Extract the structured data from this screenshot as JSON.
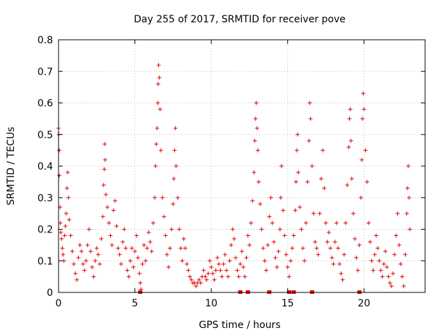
{
  "chart_data": {
    "type": "scatter",
    "title": "Day 255 of 2017, SRMTID for receiver pove",
    "xlabel": "GPS time / hours",
    "ylabel": "SRMTID / TECUs",
    "xlim": [
      0,
      24
    ],
    "ylim": [
      0,
      0.8
    ],
    "xticks": [
      0,
      5,
      10,
      15,
      20
    ],
    "yticks": [
      0,
      0.1,
      0.2,
      0.3,
      0.4,
      0.5,
      0.6,
      0.7,
      0.8
    ],
    "xtick_labels": [
      "0",
      "5",
      "10",
      "15",
      "20"
    ],
    "ytick_labels": [
      "0",
      "0.1",
      "0.2",
      "0.3",
      "0.4",
      "0.5",
      "0.6",
      "0.7",
      "0.8"
    ],
    "grid": true,
    "marker": "+",
    "color": "#e00000",
    "series": [
      {
        "name": "pove",
        "points": [
          [
            0.0,
            0.52
          ],
          [
            0.02,
            0.5
          ],
          [
            0.05,
            0.45
          ],
          [
            0.05,
            0.37
          ],
          [
            0.1,
            0.27
          ],
          [
            0.12,
            0.22
          ],
          [
            0.15,
            0.19
          ],
          [
            0.2,
            0.17
          ],
          [
            0.25,
            0.14
          ],
          [
            0.3,
            0.12
          ],
          [
            0.35,
            0.1
          ],
          [
            0.4,
            0.18
          ],
          [
            0.45,
            0.21
          ],
          [
            0.5,
            0.25
          ],
          [
            0.55,
            0.33
          ],
          [
            0.6,
            0.38
          ],
          [
            0.65,
            0.3
          ],
          [
            0.7,
            0.23
          ],
          [
            0.8,
            0.18
          ],
          [
            0.9,
            0.13
          ],
          [
            1.0,
            0.09
          ],
          [
            1.1,
            0.06
          ],
          [
            1.2,
            0.04
          ],
          [
            1.3,
            0.11
          ],
          [
            1.4,
            0.15
          ],
          [
            1.5,
            0.13
          ],
          [
            1.6,
            0.09
          ],
          [
            1.7,
            0.07
          ],
          [
            1.8,
            0.1
          ],
          [
            1.9,
            0.15
          ],
          [
            2.0,
            0.2
          ],
          [
            2.1,
            0.13
          ],
          [
            2.2,
            0.08
          ],
          [
            2.3,
            0.05
          ],
          [
            2.4,
            0.1
          ],
          [
            2.5,
            0.14
          ],
          [
            2.6,
            0.12
          ],
          [
            2.7,
            0.09
          ],
          [
            2.8,
            0.17
          ],
          [
            2.9,
            0.24
          ],
          [
            2.95,
            0.34
          ],
          [
            3.0,
            0.39
          ],
          [
            3.02,
            0.47
          ],
          [
            3.05,
            0.42
          ],
          [
            3.1,
            0.31
          ],
          [
            3.2,
            0.27
          ],
          [
            3.3,
            0.22
          ],
          [
            3.4,
            0.18
          ],
          [
            3.5,
            0.15
          ],
          [
            3.6,
            0.26
          ],
          [
            3.7,
            0.29
          ],
          [
            3.8,
            0.21
          ],
          [
            3.9,
            0.14
          ],
          [
            4.0,
            0.12
          ],
          [
            4.1,
            0.09
          ],
          [
            4.2,
            0.16
          ],
          [
            4.3,
            0.2
          ],
          [
            4.4,
            0.14
          ],
          [
            4.5,
            0.07
          ],
          [
            4.6,
            0.05
          ],
          [
            4.7,
            0.1
          ],
          [
            4.8,
            0.14
          ],
          [
            4.9,
            0.08
          ],
          [
            5.0,
            0.13
          ],
          [
            5.1,
            0.18
          ],
          [
            5.2,
            0.11
          ],
          [
            5.3,
            0.06
          ],
          [
            5.35,
            0.03
          ],
          [
            5.4,
            0.01
          ],
          [
            5.5,
            0.09
          ],
          [
            5.6,
            0.15
          ],
          [
            5.7,
            0.1
          ],
          [
            5.8,
            0.14
          ],
          [
            5.9,
            0.19
          ],
          [
            6.0,
            0.16
          ],
          [
            6.1,
            0.13
          ],
          [
            6.2,
            0.22
          ],
          [
            6.3,
            0.3
          ],
          [
            6.35,
            0.4
          ],
          [
            6.4,
            0.47
          ],
          [
            6.45,
            0.52
          ],
          [
            6.5,
            0.6
          ],
          [
            6.52,
            0.66
          ],
          [
            6.55,
            0.72
          ],
          [
            6.6,
            0.68
          ],
          [
            6.65,
            0.58
          ],
          [
            6.7,
            0.45
          ],
          [
            6.8,
            0.3
          ],
          [
            6.9,
            0.24
          ],
          [
            7.0,
            0.18
          ],
          [
            7.1,
            0.12
          ],
          [
            7.2,
            0.08
          ],
          [
            7.3,
            0.14
          ],
          [
            7.4,
            0.2
          ],
          [
            7.5,
            0.28
          ],
          [
            7.55,
            0.36
          ],
          [
            7.6,
            0.45
          ],
          [
            7.65,
            0.52
          ],
          [
            7.7,
            0.4
          ],
          [
            7.8,
            0.3
          ],
          [
            7.9,
            0.2
          ],
          [
            8.0,
            0.14
          ],
          [
            8.1,
            0.1
          ],
          [
            8.2,
            0.17
          ],
          [
            8.3,
            0.14
          ],
          [
            8.4,
            0.09
          ],
          [
            8.5,
            0.07
          ],
          [
            8.6,
            0.05
          ],
          [
            8.7,
            0.04
          ],
          [
            8.8,
            0.03
          ],
          [
            8.9,
            0.03
          ],
          [
            9.0,
            0.02
          ],
          [
            9.1,
            0.03
          ],
          [
            9.2,
            0.04
          ],
          [
            9.3,
            0.03
          ],
          [
            9.4,
            0.05
          ],
          [
            9.5,
            0.07
          ],
          [
            9.6,
            0.05
          ],
          [
            9.7,
            0.04
          ],
          [
            9.8,
            0.06
          ],
          [
            9.9,
            0.1
          ],
          [
            10.0,
            0.08
          ],
          [
            10.1,
            0.06
          ],
          [
            10.2,
            0.04
          ],
          [
            10.3,
            0.07
          ],
          [
            10.4,
            0.11
          ],
          [
            10.5,
            0.09
          ],
          [
            10.6,
            0.07
          ],
          [
            10.7,
            0.05
          ],
          [
            10.8,
            0.09
          ],
          [
            10.9,
            0.12
          ],
          [
            11.0,
            0.07
          ],
          [
            11.1,
            0.05
          ],
          [
            11.2,
            0.1
          ],
          [
            11.3,
            0.15
          ],
          [
            11.4,
            0.2
          ],
          [
            11.5,
            0.17
          ],
          [
            11.6,
            0.11
          ],
          [
            11.7,
            0.07
          ],
          [
            11.8,
            0.05
          ],
          [
            11.9,
            0.09
          ],
          [
            12.0,
            0.13
          ],
          [
            12.1,
            0.08
          ],
          [
            12.2,
            0.05
          ],
          [
            12.3,
            0.11
          ],
          [
            12.4,
            0.18
          ],
          [
            12.5,
            0.15
          ],
          [
            12.6,
            0.22
          ],
          [
            12.7,
            0.29
          ],
          [
            12.8,
            0.38
          ],
          [
            12.85,
            0.48
          ],
          [
            12.9,
            0.55
          ],
          [
            12.95,
            0.6
          ],
          [
            13.0,
            0.52
          ],
          [
            13.05,
            0.45
          ],
          [
            13.1,
            0.35
          ],
          [
            13.2,
            0.28
          ],
          [
            13.3,
            0.2
          ],
          [
            13.4,
            0.14
          ],
          [
            13.5,
            0.1
          ],
          [
            13.6,
            0.07
          ],
          [
            13.7,
            0.15
          ],
          [
            13.8,
            0.24
          ],
          [
            13.9,
            0.3
          ],
          [
            14.0,
            0.22
          ],
          [
            14.1,
            0.16
          ],
          [
            14.2,
            0.11
          ],
          [
            14.3,
            0.08
          ],
          [
            14.4,
            0.13
          ],
          [
            14.5,
            0.2
          ],
          [
            14.55,
            0.3
          ],
          [
            14.6,
            0.4
          ],
          [
            14.7,
            0.26
          ],
          [
            14.8,
            0.18
          ],
          [
            14.9,
            0.12
          ],
          [
            15.0,
            0.08
          ],
          [
            15.1,
            0.05
          ],
          [
            15.2,
            0.1
          ],
          [
            15.3,
            0.14
          ],
          [
            15.4,
            0.18
          ],
          [
            15.5,
            0.26
          ],
          [
            15.55,
            0.35
          ],
          [
            15.6,
            0.45
          ],
          [
            15.65,
            0.5
          ],
          [
            15.7,
            0.38
          ],
          [
            15.8,
            0.27
          ],
          [
            15.9,
            0.2
          ],
          [
            16.0,
            0.14
          ],
          [
            16.1,
            0.1
          ],
          [
            16.2,
            0.22
          ],
          [
            16.3,
            0.35
          ],
          [
            16.4,
            0.48
          ],
          [
            16.45,
            0.6
          ],
          [
            16.5,
            0.55
          ],
          [
            16.6,
            0.4
          ],
          [
            16.7,
            0.25
          ],
          [
            16.8,
            0.16
          ],
          [
            16.9,
            0.14
          ],
          [
            17.0,
            0.12
          ],
          [
            17.1,
            0.25
          ],
          [
            17.2,
            0.36
          ],
          [
            17.3,
            0.45
          ],
          [
            17.4,
            0.33
          ],
          [
            17.5,
            0.22
          ],
          [
            17.6,
            0.16
          ],
          [
            17.7,
            0.19
          ],
          [
            17.8,
            0.14
          ],
          [
            17.9,
            0.11
          ],
          [
            18.0,
            0.09
          ],
          [
            18.1,
            0.16
          ],
          [
            18.2,
            0.22
          ],
          [
            18.3,
            0.14
          ],
          [
            18.4,
            0.09
          ],
          [
            18.5,
            0.06
          ],
          [
            18.6,
            0.04
          ],
          [
            18.7,
            0.12
          ],
          [
            18.8,
            0.22
          ],
          [
            18.9,
            0.34
          ],
          [
            19.0,
            0.46
          ],
          [
            19.05,
            0.55
          ],
          [
            19.1,
            0.58
          ],
          [
            19.15,
            0.48
          ],
          [
            19.2,
            0.36
          ],
          [
            19.3,
            0.25
          ],
          [
            19.4,
            0.17
          ],
          [
            19.5,
            0.11
          ],
          [
            19.6,
            0.07
          ],
          [
            19.7,
            0.15
          ],
          [
            19.8,
            0.3
          ],
          [
            19.85,
            0.42
          ],
          [
            19.9,
            0.55
          ],
          [
            19.95,
            0.63
          ],
          [
            20.0,
            0.58
          ],
          [
            20.1,
            0.45
          ],
          [
            20.2,
            0.35
          ],
          [
            20.3,
            0.22
          ],
          [
            20.4,
            0.16
          ],
          [
            20.5,
            0.1
          ],
          [
            20.6,
            0.07
          ],
          [
            20.7,
            0.12
          ],
          [
            20.8,
            0.18
          ],
          [
            20.9,
            0.14
          ],
          [
            21.0,
            0.1
          ],
          [
            21.1,
            0.07
          ],
          [
            21.2,
            0.05
          ],
          [
            21.3,
            0.09
          ],
          [
            21.4,
            0.13
          ],
          [
            21.5,
            0.08
          ],
          [
            21.6,
            0.05
          ],
          [
            21.7,
            0.03
          ],
          [
            21.8,
            0.02
          ],
          [
            21.9,
            0.06
          ],
          [
            22.0,
            0.12
          ],
          [
            22.1,
            0.18
          ],
          [
            22.2,
            0.25
          ],
          [
            22.3,
            0.15
          ],
          [
            22.4,
            0.09
          ],
          [
            22.5,
            0.05
          ],
          [
            22.6,
            0.02
          ],
          [
            22.7,
            0.12
          ],
          [
            22.8,
            0.25
          ],
          [
            22.85,
            0.33
          ],
          [
            22.9,
            0.4
          ],
          [
            22.95,
            0.3
          ],
          [
            23.0,
            0.2
          ]
        ]
      }
    ],
    "zero_markers_x": [
      5.35,
      11.9,
      12.4,
      13.8,
      15.1,
      15.4,
      16.6,
      19.7
    ]
  }
}
